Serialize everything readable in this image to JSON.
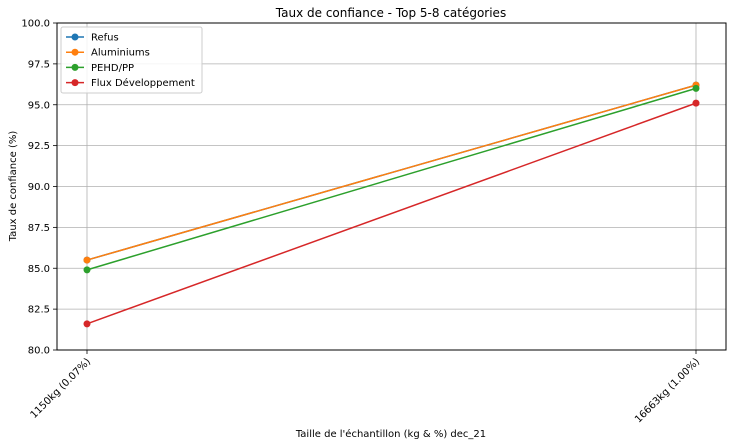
{
  "chart_data": {
    "type": "line",
    "title": "Taux de confiance - Top 5-8 catégories",
    "xlabel": "Taille de l'échantillon (kg & %) dec_21",
    "ylabel": "Taux de confiance (%)",
    "categories": [
      "1150kg (0.07%)",
      "16663kg (1.00%)"
    ],
    "ylim": [
      80.0,
      100.0
    ],
    "yticks": [
      "80.0",
      "82.5",
      "85.0",
      "87.5",
      "90.0",
      "92.5",
      "95.0",
      "97.5",
      "100.0"
    ],
    "grid": true,
    "legend_position": "top-left",
    "series": [
      {
        "name": "Refus",
        "color": "#1f77b4",
        "values": [
          85.5,
          96.2
        ]
      },
      {
        "name": "Aluminiums",
        "color": "#ff7f0e",
        "values": [
          85.5,
          96.2
        ]
      },
      {
        "name": "PEHD/PP",
        "color": "#2ca02c",
        "values": [
          84.9,
          96.0
        ]
      },
      {
        "name": "Flux Développement",
        "color": "#d62728",
        "values": [
          81.6,
          95.1
        ]
      }
    ]
  }
}
